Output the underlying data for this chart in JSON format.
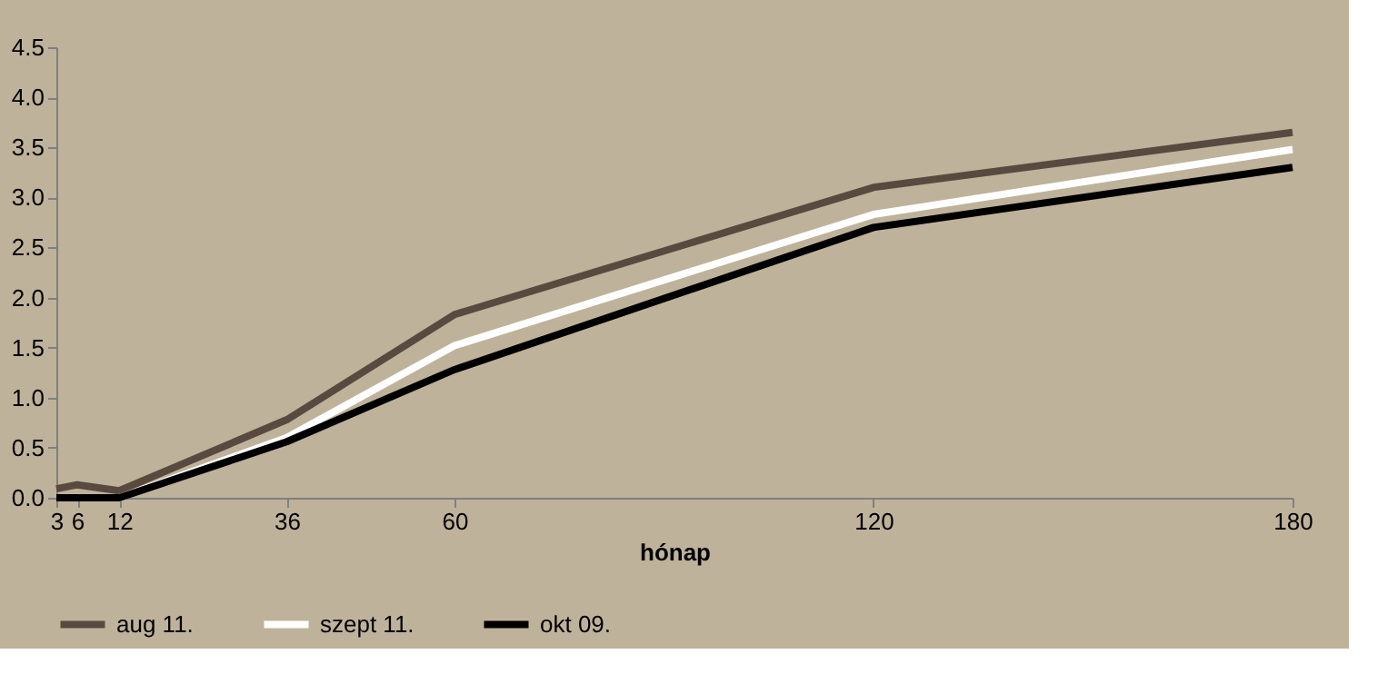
{
  "chart_data": {
    "type": "line",
    "xlabel": "hónap",
    "x": [
      3,
      6,
      12,
      36,
      60,
      120,
      180
    ],
    "xlim": [
      3,
      180
    ],
    "xticks": [
      3,
      6,
      12,
      36,
      60,
      120,
      180
    ],
    "ylim": [
      0,
      4.5
    ],
    "yticks": [
      {
        "value": 0,
        "label": "0.0"
      },
      {
        "value": 0.5,
        "label": "0.5"
      },
      {
        "value": 1,
        "label": "1.0"
      },
      {
        "value": 1.5,
        "label": "1.5"
      },
      {
        "value": 2,
        "label": "2.0"
      },
      {
        "value": 2.5,
        "label": "2.5"
      },
      {
        "value": 3,
        "label": "3.0"
      },
      {
        "value": 3.5,
        "label": "3.5"
      },
      {
        "value": 4,
        "label": "4.0"
      },
      {
        "value": 4.5,
        "label": "4.5"
      }
    ],
    "grid": false,
    "legend": "bottom",
    "marker": "none",
    "line_style": "solid",
    "series": [
      {
        "name": "aug 11.",
        "color": "#594a40",
        "values": [
          0.09,
          0.13,
          0.07,
          0.78,
          1.83,
          3.1,
          3.65
        ]
      },
      {
        "name": "szept 11.",
        "color": "#ffffff",
        "values": [
          0.0,
          0.0,
          0.0,
          0.6,
          1.52,
          2.83,
          3.48
        ]
      },
      {
        "name": "okt 09.",
        "color": "#000000",
        "values": [
          0.0,
          0.0,
          0.0,
          0.56,
          1.28,
          2.7,
          3.3
        ]
      }
    ]
  }
}
